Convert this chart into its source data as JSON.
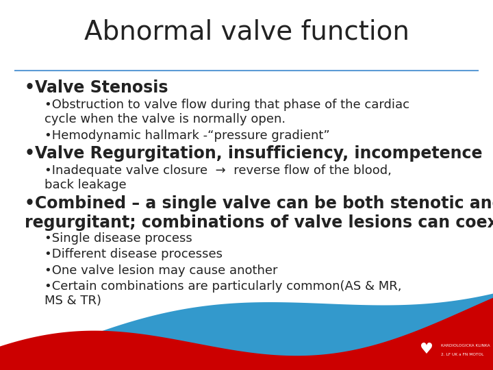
{
  "title": "Abnormal valve function",
  "background_color": "#ffffff",
  "title_color": "#222222",
  "title_fontsize": 28,
  "separator_color": "#5b9bd5",
  "text_color": "#222222",
  "wave_blue": "#3399cc",
  "wave_red": "#cc0000",
  "content": [
    {
      "level": 1,
      "text": "Valve Stenosis",
      "bold": true,
      "size": 17
    },
    {
      "level": 2,
      "text": "Obstruction to valve flow during that phase of the cardiac\ncycle when the valve is normally open.",
      "bold": false,
      "size": 13
    },
    {
      "level": 2,
      "text": "Hemodynamic hallmark -“pressure gradient”",
      "bold": false,
      "size": 13
    },
    {
      "level": 1,
      "text": "Valve Regurgitation, insufficiency, incompetence",
      "bold": true,
      "size": 17
    },
    {
      "level": 2,
      "text": "Inadequate valve closure  →  reverse flow of the blood,\nback leakage",
      "bold": false,
      "size": 13
    },
    {
      "level": 1,
      "text": "Combined – a single valve can be both stenotic and\nregurgitant; combinations of valve lesions can coexist",
      "bold": true,
      "size": 17
    },
    {
      "level": 2,
      "text": "Single disease process",
      "bold": false,
      "size": 13
    },
    {
      "level": 2,
      "text": "Different disease processes",
      "bold": false,
      "size": 13
    },
    {
      "level": 2,
      "text": "One valve lesion may cause another",
      "bold": false,
      "size": 13
    },
    {
      "level": 2,
      "text": "Certain combinations are particularly common(AS & MR,\nMS & TR)",
      "bold": false,
      "size": 13
    }
  ]
}
